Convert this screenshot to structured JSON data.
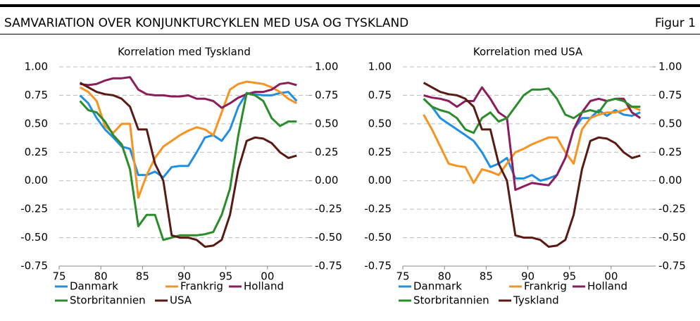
{
  "header": {
    "title": "SAMVARIATION OVER KONJUNKTURCYKLEN MED USA OG TYSKLAND",
    "figure_label": "Figur 1"
  },
  "chart_data": [
    {
      "type": "line",
      "title": "Korrelation med Tyskland",
      "x": [
        77.5,
        78.5,
        79.5,
        80.5,
        81.5,
        82.5,
        83.5,
        84.5,
        85.5,
        86.5,
        87.5,
        88.5,
        89.5,
        90.5,
        91.5,
        92.5,
        93.5,
        94.5,
        95.5,
        96.5,
        97.5,
        98.5,
        99.5,
        100.5,
        101.5,
        102.5,
        103.5
      ],
      "xlim": [
        75,
        105
      ],
      "xticks": [
        75,
        80,
        85,
        90,
        95,
        {
          "value": 100,
          "label": "00"
        }
      ],
      "ylim": [
        -0.75,
        1
      ],
      "yticks": [
        {
          "value": -0.75,
          "label": "-0.75"
        },
        {
          "value": -0.5,
          "label": "-0.50"
        },
        {
          "value": -0.25,
          "label": "-0.25"
        },
        {
          "value": 0,
          "label": "0.00"
        },
        {
          "value": 0.25,
          "label": "0.25"
        },
        {
          "value": 0.5,
          "label": "0.50"
        },
        {
          "value": 0.75,
          "label": "0.75"
        },
        {
          "value": 1,
          "label": "1.00"
        }
      ],
      "y2lim": [
        -0.75,
        1
      ],
      "y2ticks": [
        {
          "value": -0.75,
          "label": "-0.75"
        },
        {
          "value": -0.5,
          "label": "-0.50"
        },
        {
          "value": -0.25,
          "label": "-0.25"
        },
        {
          "value": 0,
          "label": "0.00"
        },
        {
          "value": 0.25,
          "label": "0.25"
        },
        {
          "value": 0.5,
          "label": "0.50"
        },
        {
          "value": 0.75,
          "label": "0.75"
        },
        {
          "value": 1,
          "label": "1.00"
        }
      ],
      "grid": true,
      "series": [
        {
          "name": "Danmark",
          "color": "#1f8fe6",
          "values": [
            0.75,
            0.68,
            0.55,
            0.45,
            0.38,
            0.3,
            0.28,
            0.05,
            0.05,
            0.08,
            0.03,
            0.12,
            0.13,
            0.13,
            0.25,
            0.38,
            0.4,
            0.35,
            0.45,
            0.65,
            0.77,
            0.76,
            0.75,
            0.75,
            0.77,
            0.78,
            0.7
          ]
        },
        {
          "name": "Frankrig",
          "color": "#f7931e",
          "values": [
            0.82,
            0.78,
            0.7,
            0.48,
            0.42,
            0.5,
            0.5,
            -0.15,
            0.05,
            0.2,
            0.3,
            0.35,
            0.4,
            0.44,
            0.47,
            0.45,
            0.4,
            0.6,
            0.8,
            0.85,
            0.87,
            0.86,
            0.85,
            0.82,
            0.78,
            0.72,
            0.68
          ]
        },
        {
          "name": "Holland",
          "color": "#8c1c5c",
          "values": [
            0.85,
            0.84,
            0.85,
            0.88,
            0.9,
            0.9,
            0.91,
            0.8,
            0.76,
            0.75,
            0.75,
            0.74,
            0.74,
            0.75,
            0.72,
            0.72,
            0.7,
            0.64,
            0.68,
            0.73,
            0.76,
            0.78,
            0.78,
            0.8,
            0.85,
            0.86,
            0.84
          ]
        },
        {
          "name": "Storbritannien",
          "color": "#2a8c2a",
          "values": [
            0.7,
            0.62,
            0.6,
            0.52,
            0.4,
            0.32,
            0.1,
            -0.4,
            -0.3,
            -0.3,
            -0.52,
            -0.5,
            -0.48,
            -0.48,
            -0.48,
            -0.47,
            -0.45,
            -0.3,
            -0.07,
            0.4,
            0.77,
            0.75,
            0.7,
            0.55,
            0.48,
            0.52,
            0.52
          ]
        },
        {
          "name": "USA",
          "color": "#5a1a14",
          "values": [
            0.86,
            0.82,
            0.78,
            0.76,
            0.75,
            0.72,
            0.65,
            0.45,
            0.45,
            0.15,
            0.0,
            -0.48,
            -0.5,
            -0.5,
            -0.52,
            -0.58,
            -0.57,
            -0.52,
            -0.3,
            0.1,
            0.35,
            0.38,
            0.37,
            0.33,
            0.25,
            0.2,
            0.22
          ]
        }
      ]
    },
    {
      "type": "line",
      "title": "Korrelation med USA",
      "x": [
        77.5,
        78.5,
        79.5,
        80.5,
        81.5,
        82.5,
        83.5,
        84.5,
        85.5,
        86.5,
        87.5,
        88.5,
        89.5,
        90.5,
        91.5,
        92.5,
        93.5,
        94.5,
        95.5,
        96.5,
        97.5,
        98.5,
        99.5,
        100.5,
        101.5,
        102.5,
        103.5
      ],
      "xlim": [
        75,
        105
      ],
      "xticks": [
        75,
        80,
        85,
        90,
        95,
        {
          "value": 100,
          "label": "00"
        }
      ],
      "ylim": [
        -0.75,
        1
      ],
      "yticks": [
        {
          "value": -0.75,
          "label": "-0.75"
        },
        {
          "value": -0.5,
          "label": "-0.50"
        },
        {
          "value": -0.25,
          "label": "-0.25"
        },
        {
          "value": 0,
          "label": "0.00"
        },
        {
          "value": 0.25,
          "label": "0.25"
        },
        {
          "value": 0.5,
          "label": "0.50"
        },
        {
          "value": 0.75,
          "label": "0.75"
        },
        {
          "value": 1,
          "label": "1.00"
        }
      ],
      "y2lim": [
        -0.75,
        1
      ],
      "y2ticks": [
        {
          "value": -0.75,
          "label": "-0.75"
        },
        {
          "value": -0.5,
          "label": "-0.50"
        },
        {
          "value": -0.25,
          "label": "-0.25"
        },
        {
          "value": 0,
          "label": "0.00"
        },
        {
          "value": 0.25,
          "label": "0.25"
        },
        {
          "value": 0.5,
          "label": "0.50"
        },
        {
          "value": 0.75,
          "label": "0.75"
        },
        {
          "value": 1,
          "label": "1.00"
        }
      ],
      "grid": true,
      "series": [
        {
          "name": "Danmark",
          "color": "#1f8fe6",
          "values": [
            0.72,
            0.65,
            0.55,
            0.5,
            0.45,
            0.4,
            0.35,
            0.25,
            0.12,
            0.15,
            0.2,
            0.02,
            0.02,
            0.05,
            0.0,
            0.02,
            0.05,
            0.2,
            0.45,
            0.55,
            0.55,
            0.62,
            0.57,
            0.62,
            0.58,
            0.57,
            0.6
          ]
        },
        {
          "name": "Frankrig",
          "color": "#f7931e",
          "values": [
            0.58,
            0.45,
            0.3,
            0.15,
            0.13,
            0.12,
            -0.02,
            0.1,
            0.08,
            0.05,
            0.15,
            0.25,
            0.28,
            0.32,
            0.35,
            0.38,
            0.38,
            0.25,
            0.15,
            0.45,
            0.55,
            0.58,
            0.6,
            0.6,
            0.62,
            0.65,
            0.62
          ]
        },
        {
          "name": "Holland",
          "color": "#8c1c5c",
          "values": [
            0.75,
            0.73,
            0.72,
            0.7,
            0.65,
            0.7,
            0.7,
            0.82,
            0.72,
            0.6,
            0.55,
            -0.08,
            -0.05,
            -0.02,
            -0.03,
            -0.04,
            0.05,
            0.2,
            0.45,
            0.6,
            0.7,
            0.72,
            0.7,
            0.72,
            0.72,
            0.6,
            0.55
          ]
        },
        {
          "name": "Storbritannien",
          "color": "#2a8c2a",
          "values": [
            0.72,
            0.65,
            0.62,
            0.6,
            0.55,
            0.45,
            0.42,
            0.55,
            0.6,
            0.52,
            0.55,
            0.65,
            0.75,
            0.8,
            0.8,
            0.81,
            0.72,
            0.58,
            0.55,
            0.6,
            0.62,
            0.6,
            0.7,
            0.72,
            0.7,
            0.65,
            0.65
          ]
        },
        {
          "name": "Tyskland",
          "color": "#5a1a14",
          "values": [
            0.86,
            0.82,
            0.78,
            0.76,
            0.75,
            0.72,
            0.65,
            0.45,
            0.45,
            0.15,
            0.0,
            -0.48,
            -0.5,
            -0.5,
            -0.52,
            -0.58,
            -0.57,
            -0.52,
            -0.3,
            0.1,
            0.35,
            0.38,
            0.37,
            0.33,
            0.25,
            0.2,
            0.22
          ]
        }
      ]
    }
  ]
}
